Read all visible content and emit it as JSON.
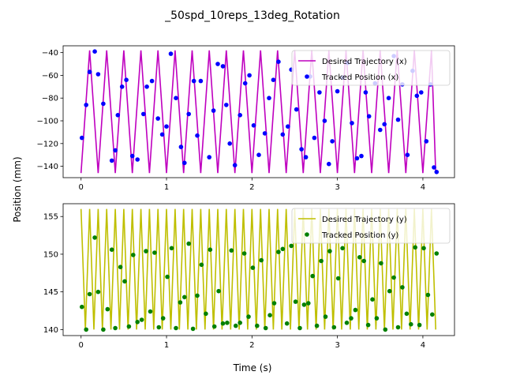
{
  "chart_data": {
    "suptitle": "_50spd_10reps_13deg_Rotation",
    "xlabel": "Time (s)",
    "ylabel": "Position (mm)",
    "panels": [
      {
        "type": "line",
        "xlim": [
          -0.21,
          4.37
        ],
        "ylim": [
          -150,
          -34
        ],
        "yticks": [
          -140,
          -120,
          -100,
          -80,
          -60,
          -40
        ],
        "xticks": [
          0,
          1,
          2,
          3,
          4
        ],
        "legend_position": "top-right",
        "series": [
          {
            "name": "Desired Trajectory (x)",
            "kind": "line",
            "color": "#bf00bf",
            "x": [
              0.0,
              0.1,
              0.2,
              0.3,
              0.4,
              0.5,
              0.6,
              0.7,
              0.8,
              0.9,
              1.0,
              1.1,
              1.2,
              1.3,
              1.4,
              1.5,
              1.6,
              1.7,
              1.8,
              1.9,
              2.0,
              2.1,
              2.2,
              2.3,
              2.4,
              2.5,
              2.6,
              2.7,
              2.8,
              2.9,
              3.0,
              3.1,
              3.2,
              3.3,
              3.4,
              3.5,
              3.6,
              3.7,
              3.8,
              3.9,
              4.0,
              4.1,
              4.15
            ],
            "y": [
              -146,
              -38,
              -146,
              -38,
              -146,
              -38,
              -146,
              -38,
              -146,
              -38,
              -146,
              -38,
              -146,
              -38,
              -146,
              -38,
              -146,
              -38,
              -146,
              -38,
              -146,
              -38,
              -146,
              -38,
              -146,
              -38,
              -146,
              -38,
              -146,
              -38,
              -146,
              -38,
              -146,
              -38,
              -146,
              -38,
              -146,
              -38,
              -146,
              -38,
              -146,
              -38,
              -146
            ]
          },
          {
            "name": "Tracked Position (x)",
            "kind": "scatter",
            "color": "#0000ff",
            "x": [
              0.01,
              0.06,
              0.1,
              0.16,
              0.2,
              0.26,
              0.36,
              0.4,
              0.43,
              0.48,
              0.53,
              0.6,
              0.66,
              0.73,
              0.77,
              0.83,
              0.9,
              0.95,
              1.0,
              1.05,
              1.11,
              1.17,
              1.21,
              1.26,
              1.32,
              1.36,
              1.4,
              1.5,
              1.55,
              1.6,
              1.66,
              1.7,
              1.74,
              1.8,
              1.86,
              1.92,
              1.97,
              2.02,
              2.08,
              2.15,
              2.2,
              2.25,
              2.31,
              2.36,
              2.42,
              2.46,
              2.52,
              2.58,
              2.63,
              2.68,
              2.73,
              2.79,
              2.85,
              2.9,
              2.94,
              3.0,
              3.06,
              3.12,
              3.17,
              3.23,
              3.28,
              3.33,
              3.37,
              3.44,
              3.5,
              3.55,
              3.6,
              3.66,
              3.71,
              3.76,
              3.82,
              3.88,
              3.93,
              3.98,
              4.04,
              4.09,
              4.13,
              4.16
            ],
            "y": [
              -115,
              -86,
              -57,
              -39,
              -59,
              -85,
              -135,
              -126,
              -95,
              -70,
              -64,
              -131,
              -134,
              -94,
              -70,
              -65,
              -98,
              -112,
              -105,
              -41,
              -80,
              -123,
              -137,
              -94,
              -65,
              -113,
              -65,
              -132,
              -91,
              -50,
              -52,
              -86,
              -120,
              -139,
              -95,
              -67,
              -60,
              -104,
              -130,
              -111,
              -80,
              -64,
              -48,
              -112,
              -105,
              -55,
              -90,
              -125,
              -132,
              -61,
              -115,
              -75,
              -100,
              -138,
              -118,
              -74,
              -62,
              -49,
              -102,
              -133,
              -131,
              -75,
              -96,
              -67,
              -108,
              -103,
              -80,
              -43,
              -99,
              -68,
              -130,
              -56,
              -78,
              -75,
              -118,
              -68,
              -141,
              -145
            ]
          }
        ]
      },
      {
        "type": "line",
        "xlim": [
          -0.21,
          4.37
        ],
        "ylim": [
          139.2,
          156.7
        ],
        "yticks": [
          140,
          145,
          150,
          155
        ],
        "xticks": [
          0,
          1,
          2,
          3,
          4
        ],
        "legend_position": "top-right",
        "series": [
          {
            "name": "Desired Trajectory (y)",
            "kind": "line",
            "color": "#bfbf00",
            "x": [
              0.0,
              0.05,
              0.1,
              0.15,
              0.2,
              0.25,
              0.3,
              0.35,
              0.4,
              0.45,
              0.5,
              0.55,
              0.6,
              0.65,
              0.7,
              0.75,
              0.8,
              0.85,
              0.9,
              0.95,
              1.0,
              1.05,
              1.1,
              1.15,
              1.2,
              1.25,
              1.3,
              1.35,
              1.4,
              1.45,
              1.5,
              1.55,
              1.6,
              1.65,
              1.7,
              1.75,
              1.8,
              1.85,
              1.9,
              1.95,
              2.0,
              2.05,
              2.1,
              2.15,
              2.2,
              2.25,
              2.3,
              2.35,
              2.4,
              2.45,
              2.5,
              2.55,
              2.6,
              2.65,
              2.7,
              2.75,
              2.8,
              2.85,
              2.9,
              2.95,
              3.0,
              3.05,
              3.1,
              3.15,
              3.2,
              3.25,
              3.3,
              3.35,
              3.4,
              3.45,
              3.5,
              3.55,
              3.6,
              3.65,
              3.7,
              3.75,
              3.8,
              3.85,
              3.9,
              3.95,
              4.0,
              4.05,
              4.1,
              4.15
            ],
            "y": [
              156,
              140,
              156,
              140,
              156,
              140,
              156,
              140,
              156,
              140,
              156,
              140,
              156,
              140,
              156,
              140,
              156,
              140,
              156,
              140,
              156,
              140,
              156,
              140,
              156,
              140,
              156,
              140,
              156,
              140,
              156,
              140,
              156,
              140,
              156,
              140,
              156,
              140,
              156,
              140,
              156,
              140,
              156,
              140,
              156,
              140,
              156,
              140,
              156,
              140,
              156,
              140,
              156,
              140,
              156,
              140,
              156,
              140,
              156,
              140,
              156,
              140,
              156,
              140,
              156,
              140,
              156,
              140,
              156,
              140,
              156,
              140,
              156,
              140,
              156,
              140,
              156,
              140,
              156,
              140,
              156,
              140,
              156,
              140
            ]
          },
          {
            "name": "Tracked Position (y)",
            "kind": "scatter",
            "color": "#008000",
            "x": [
              0.01,
              0.06,
              0.1,
              0.16,
              0.2,
              0.26,
              0.31,
              0.36,
              0.4,
              0.46,
              0.51,
              0.56,
              0.61,
              0.66,
              0.71,
              0.76,
              0.81,
              0.86,
              0.91,
              0.96,
              1.01,
              1.06,
              1.11,
              1.16,
              1.21,
              1.26,
              1.31,
              1.36,
              1.41,
              1.46,
              1.51,
              1.56,
              1.61,
              1.66,
              1.71,
              1.76,
              1.81,
              1.86,
              1.91,
              1.96,
              2.01,
              2.06,
              2.11,
              2.16,
              2.21,
              2.26,
              2.31,
              2.36,
              2.41,
              2.46,
              2.51,
              2.56,
              2.61,
              2.66,
              2.71,
              2.76,
              2.81,
              2.86,
              2.91,
              2.96,
              3.01,
              3.06,
              3.11,
              3.16,
              3.21,
              3.26,
              3.31,
              3.36,
              3.41,
              3.46,
              3.51,
              3.56,
              3.61,
              3.66,
              3.71,
              3.76,
              3.81,
              3.86,
              3.91,
              3.96,
              4.01,
              4.06,
              4.11,
              4.16
            ],
            "y": [
              143,
              140,
              144.7,
              152.2,
              145,
              140,
              142.7,
              150.6,
              140.2,
              148.3,
              146.4,
              140.4,
              149.9,
              141,
              141.3,
              150.4,
              142.4,
              150.2,
              140.3,
              141.5,
              147,
              150.8,
              140.2,
              143.6,
              144.3,
              151.4,
              140.1,
              144.5,
              148.6,
              142.1,
              150.6,
              140.4,
              145.1,
              140.8,
              140.9,
              150.5,
              140.5,
              140.9,
              150.1,
              141.7,
              148.2,
              140.5,
              149.2,
              140.2,
              141.9,
              143.5,
              150.3,
              150.7,
              140.8,
              151.1,
              143.7,
              140.2,
              143.3,
              143.5,
              147.1,
              140.5,
              149.1,
              141.7,
              150.4,
              140.3,
              146.8,
              150.8,
              140.9,
              141.5,
              142.6,
              149.6,
              149.1,
              140.6,
              144,
              141.5,
              148.8,
              140,
              145.1,
              146.9,
              140.3,
              145.6,
              142.1,
              140.7,
              150.9,
              140.6,
              150.8,
              144.6,
              142,
              150.1
            ]
          }
        ]
      }
    ]
  }
}
